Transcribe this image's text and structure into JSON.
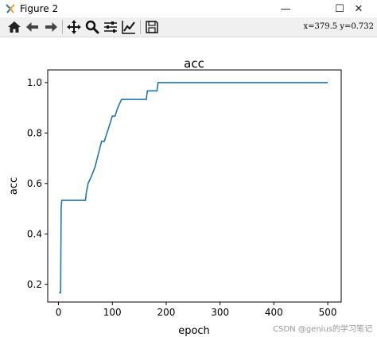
{
  "window": {
    "title": "Figure 2",
    "minimize": "—",
    "maximize": "☐",
    "close": "✕"
  },
  "toolbar": {
    "buttons": [
      "home-icon",
      "back-icon",
      "forward-icon",
      "pan-icon",
      "zoom-icon",
      "configure-subplots-icon",
      "edit-axis-icon",
      "save-icon"
    ],
    "coords": "x=379.5  y=0.732"
  },
  "watermark": "CSDN @genius的学习笔记",
  "chart_data": {
    "type": "line",
    "title": "acc",
    "xlabel": "epoch",
    "ylabel": "acc",
    "xlim": [
      -20,
      525
    ],
    "ylim": [
      0.13,
      1.05
    ],
    "xticks": [
      0,
      100,
      200,
      300,
      400,
      500
    ],
    "yticks": [
      0.2,
      0.4,
      0.6,
      0.8,
      1.0
    ],
    "xtick_labels": [
      "0",
      "100",
      "200",
      "300",
      "400",
      "500"
    ],
    "ytick_labels": [
      "0.2",
      "0.4",
      "0.6",
      "0.8",
      "1.0"
    ],
    "color": "#1f77b4",
    "series": [
      {
        "x": [
          1,
          4,
          5,
          6,
          50,
          52,
          55,
          62,
          68,
          72,
          76,
          80,
          85,
          90,
          95,
          100,
          105,
          110,
          117,
          163,
          165,
          183,
          185,
          500
        ],
        "y": [
          0.167,
          0.167,
          0.5,
          0.533,
          0.533,
          0.567,
          0.6,
          0.633,
          0.667,
          0.7,
          0.733,
          0.767,
          0.767,
          0.8,
          0.833,
          0.867,
          0.867,
          0.9,
          0.933,
          0.933,
          0.967,
          0.967,
          1.0,
          1.0
        ]
      }
    ]
  }
}
